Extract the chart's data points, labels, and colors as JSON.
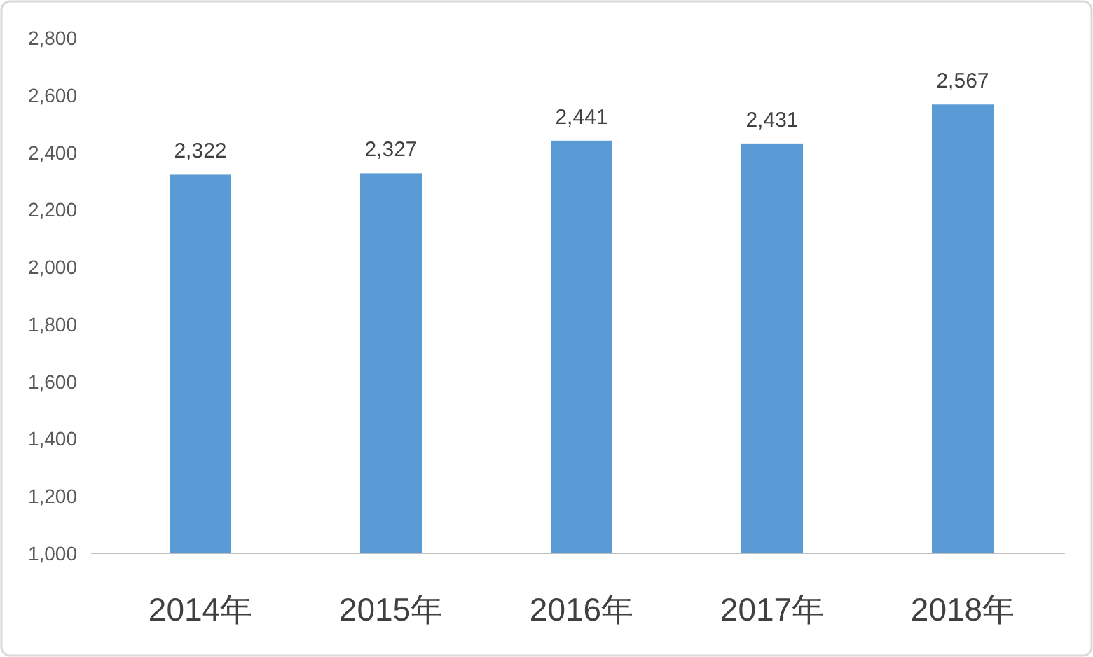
{
  "chart_data": {
    "type": "bar",
    "categories": [
      "2014年",
      "2015年",
      "2016年",
      "2017年",
      "2018年"
    ],
    "values": [
      2322,
      2327,
      2441,
      2431,
      2567
    ],
    "value_labels": [
      "2,322",
      "2,327",
      "2,441",
      "2,431",
      "2,567"
    ],
    "color": "#5b9bd5",
    "ylim": [
      1000,
      2800
    ],
    "yticks": [
      {
        "value": 1000,
        "label": "1,000"
      },
      {
        "value": 1200,
        "label": "1,200"
      },
      {
        "value": 1400,
        "label": "1,400"
      },
      {
        "value": 1600,
        "label": "1,600"
      },
      {
        "value": 1800,
        "label": "1,800"
      },
      {
        "value": 2000,
        "label": "2,000"
      },
      {
        "value": 2200,
        "label": "2,200"
      },
      {
        "value": 2400,
        "label": "2,400"
      },
      {
        "value": 2600,
        "label": "2,600"
      },
      {
        "value": 2800,
        "label": "2,800"
      }
    ]
  }
}
